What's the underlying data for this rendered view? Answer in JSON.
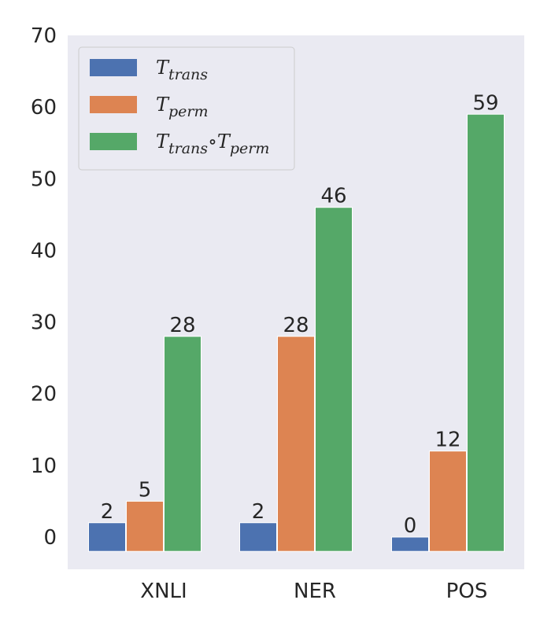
{
  "chart_data": {
    "type": "bar",
    "categories": [
      "XNLI",
      "NER",
      "POS"
    ],
    "series": [
      {
        "name": "T_trans",
        "legend_main": "T",
        "legend_sub": "trans",
        "color": "#4C72B0",
        "values": [
          2,
          2,
          0
        ]
      },
      {
        "name": "T_perm",
        "legend_main": "T",
        "legend_sub": "perm",
        "color": "#DD8452",
        "values": [
          5,
          28,
          12
        ]
      },
      {
        "name": "T_trans∘T_perm",
        "legend_main": "T",
        "legend_sub": "trans",
        "legend_op": "∘",
        "legend_main2": "T",
        "legend_sub2": "perm",
        "color": "#55A868",
        "values": [
          28,
          46,
          59
        ]
      }
    ],
    "y_ticks": [
      0,
      10,
      20,
      30,
      40,
      50,
      60,
      70
    ],
    "bar_baseline": -2,
    "ylim": [
      -4.5,
      70
    ],
    "grid": false,
    "legend_position": "top-left",
    "background": "#EAEAF2",
    "title": "",
    "xlabel": "",
    "ylabel": ""
  }
}
